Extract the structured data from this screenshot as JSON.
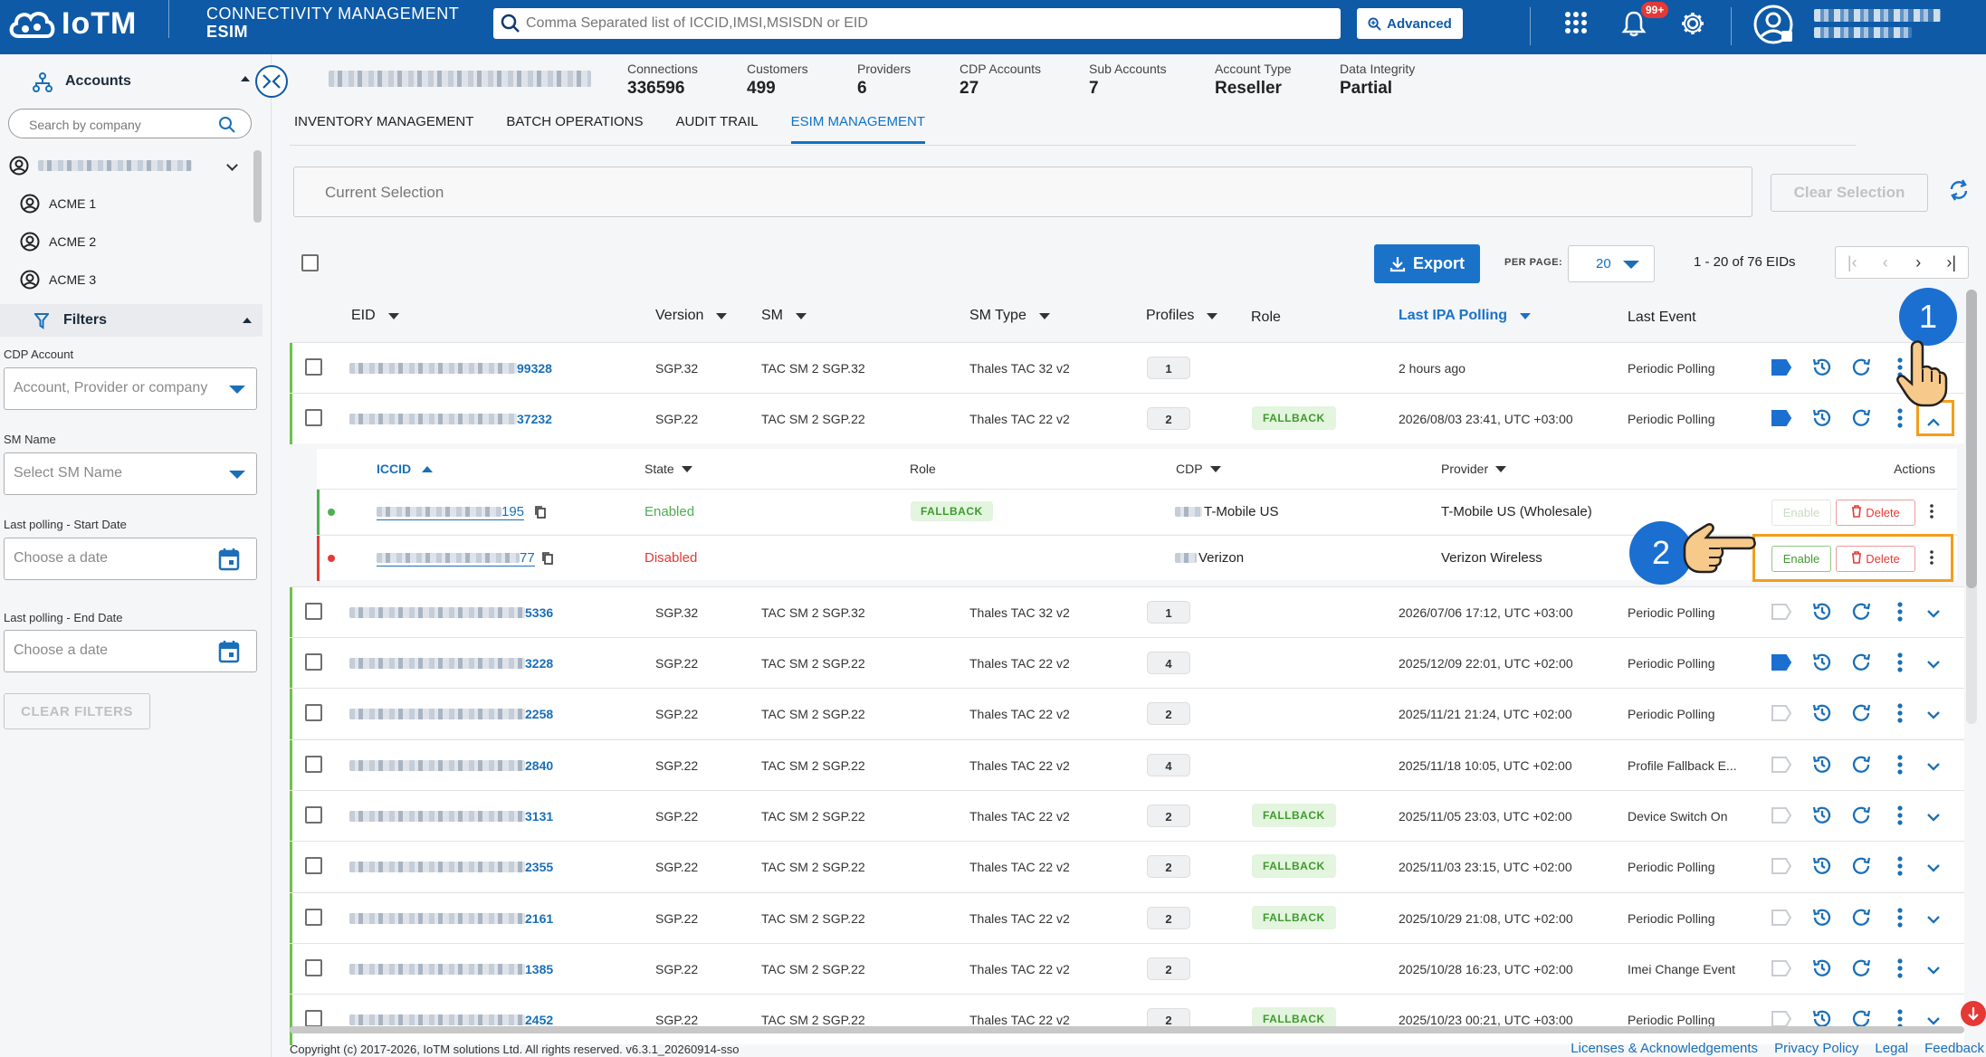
{
  "header": {
    "logo_text": "IoTM",
    "app_title": "CONNECTIVITY MANAGEMENT",
    "app_subtitle": "ESIM",
    "search_placeholder": "Comma Separated list of ICCID,IMSI,MSISDN or EID",
    "advanced_label": "Advanced",
    "notification_badge": "99+",
    "icons": [
      "grid-icon",
      "bell-icon",
      "gear-icon",
      "user-icon"
    ]
  },
  "sidebar": {
    "accounts_label": "Accounts",
    "search_placeholder": "Search by company",
    "accounts": [
      "ACME 1",
      "ACME 2",
      "ACME 3"
    ],
    "filters_label": "Filters",
    "cdp_account_label": "CDP Account",
    "cdp_account_placeholder": "Account, Provider or company",
    "sm_name_label": "SM Name",
    "sm_name_placeholder": "Select SM Name",
    "start_date_label": "Last polling - Start Date",
    "start_date_placeholder": "Choose a date",
    "end_date_label": "Last polling - End Date",
    "end_date_placeholder": "Choose a date",
    "clear_filters_label": "CLEAR FILTERS"
  },
  "stats": [
    {
      "label": "Connections",
      "value": "336596"
    },
    {
      "label": "Customers",
      "value": "499"
    },
    {
      "label": "Providers",
      "value": "6"
    },
    {
      "label": "CDP Accounts",
      "value": "27"
    },
    {
      "label": "Sub Accounts",
      "value": "7"
    },
    {
      "label": "Account Type",
      "value": "Reseller"
    },
    {
      "label": "Data Integrity",
      "value": "Partial"
    }
  ],
  "tabs": [
    "INVENTORY MANAGEMENT",
    "BATCH OPERATIONS",
    "AUDIT TRAIL",
    "ESIM MANAGEMENT"
  ],
  "active_tab": "ESIM MANAGEMENT",
  "selection": {
    "current_selection_label": "Current Selection",
    "clear_selection_label": "Clear Selection"
  },
  "toolbar": {
    "export_label": "Export",
    "per_page_label": "PER PAGE:",
    "per_page_value": "20",
    "page_info": "1 - 20 of 76 EIDs"
  },
  "table": {
    "columns": [
      "EID",
      "Version",
      "SM",
      "SM Type",
      "Profiles",
      "Role",
      "Last IPA Polling",
      "Last Event"
    ],
    "rows": [
      {
        "eid_suffix": "99328",
        "version": "SGP.32",
        "sm": "TAC SM 2 SGP.32",
        "sm_type": "Thales TAC 32 v2",
        "profiles": "1",
        "role": "",
        "last_polling": "2 hours ago",
        "last_event": "Periodic Polling",
        "tag": true
      },
      {
        "eid_suffix": "37232",
        "version": "SGP.22",
        "sm": "TAC SM 2 SGP.22",
        "sm_type": "Thales TAC 22 v2",
        "profiles": "2",
        "role": "FALLBACK",
        "last_polling": "2026/08/03 23:41, UTC +03:00",
        "last_event": "Periodic Polling",
        "tag": true
      },
      {
        "eid_suffix": "5336",
        "version": "SGP.32",
        "sm": "TAC SM 2 SGP.32",
        "sm_type": "Thales TAC 32 v2",
        "profiles": "1",
        "role": "",
        "last_polling": "2026/07/06 17:12, UTC +03:00",
        "last_event": "Periodic Polling",
        "tag": false
      },
      {
        "eid_suffix": "3228",
        "version": "SGP.22",
        "sm": "TAC SM 2 SGP.22",
        "sm_type": "Thales TAC 22 v2",
        "profiles": "4",
        "role": "",
        "last_polling": "2025/12/09 22:01, UTC +02:00",
        "last_event": "Periodic Polling",
        "tag": true
      },
      {
        "eid_suffix": "2258",
        "version": "SGP.22",
        "sm": "TAC SM 2 SGP.22",
        "sm_type": "Thales TAC 22 v2",
        "profiles": "2",
        "role": "",
        "last_polling": "2025/11/21 21:24, UTC +02:00",
        "last_event": "Periodic Polling",
        "tag": false
      },
      {
        "eid_suffix": "2840",
        "version": "SGP.22",
        "sm": "TAC SM 2 SGP.22",
        "sm_type": "Thales TAC 22 v2",
        "profiles": "4",
        "role": "",
        "last_polling": "2025/11/18 10:05, UTC +02:00",
        "last_event": "Profile Fallback E...",
        "tag": false
      },
      {
        "eid_suffix": "3131",
        "version": "SGP.22",
        "sm": "TAC SM 2 SGP.22",
        "sm_type": "Thales TAC 22 v2",
        "profiles": "2",
        "role": "FALLBACK",
        "last_polling": "2025/11/05 23:03, UTC +02:00",
        "last_event": "Device Switch On",
        "tag": false
      },
      {
        "eid_suffix": "2355",
        "version": "SGP.22",
        "sm": "TAC SM 2 SGP.22",
        "sm_type": "Thales TAC 22 v2",
        "profiles": "2",
        "role": "FALLBACK",
        "last_polling": "2025/11/03 23:15, UTC +02:00",
        "last_event": "Periodic Polling",
        "tag": false
      },
      {
        "eid_suffix": "2161",
        "version": "SGP.22",
        "sm": "TAC SM 2 SGP.22",
        "sm_type": "Thales TAC 22 v2",
        "profiles": "2",
        "role": "FALLBACK",
        "last_polling": "2025/10/29 21:08, UTC +02:00",
        "last_event": "Periodic Polling",
        "tag": false
      },
      {
        "eid_suffix": "1385",
        "version": "SGP.22",
        "sm": "TAC SM 2 SGP.22",
        "sm_type": "Thales TAC 22 v2",
        "profiles": "2",
        "role": "",
        "last_polling": "2025/10/28 16:23, UTC +02:00",
        "last_event": "Imei Change Event",
        "tag": false
      },
      {
        "eid_suffix": "2452",
        "version": "SGP.22",
        "sm": "TAC SM 2 SGP.22",
        "sm_type": "Thales TAC 22 v2",
        "profiles": "2",
        "role": "FALLBACK",
        "last_polling": "2025/10/23 00:21, UTC +03:00",
        "last_event": "Periodic Polling",
        "tag": false
      }
    ]
  },
  "subtable": {
    "columns": [
      "ICCID",
      "State",
      "Role",
      "CDP",
      "Provider",
      "Actions"
    ],
    "rows": [
      {
        "iccid_suffix": "195",
        "state": "Enabled",
        "state_color": "#4caf50",
        "role": "FALLBACK",
        "cdp": "T-Mobile US",
        "provider": "T-Mobile US (Wholesale)",
        "enable_label": "Enable",
        "delete_label": "Delete"
      },
      {
        "iccid_suffix": "77",
        "state": "Disabled",
        "state_color": "#e53935",
        "role": "",
        "cdp": "Verizon",
        "provider": "Verizon Wireless",
        "enable_label": "Enable",
        "delete_label": "Delete"
      }
    ]
  },
  "annotations": [
    "1",
    "2"
  ],
  "footer": {
    "copyright": "Copyright (c) 2017-2026, IoTM solutions Ltd. All rights reserved. v6.3.1_20260914-sso",
    "links": [
      "Licenses & Acknowledgements",
      "Privacy Policy",
      "Legal",
      "Feedback"
    ]
  },
  "colors": {
    "brand": "#0e5aa7",
    "accent": "#1a73c9",
    "fallback_bg": "#e3f4df",
    "fallback_text": "#3f9b2e",
    "highlight": "#f29e1b",
    "row_bar": "#6cc24a"
  }
}
